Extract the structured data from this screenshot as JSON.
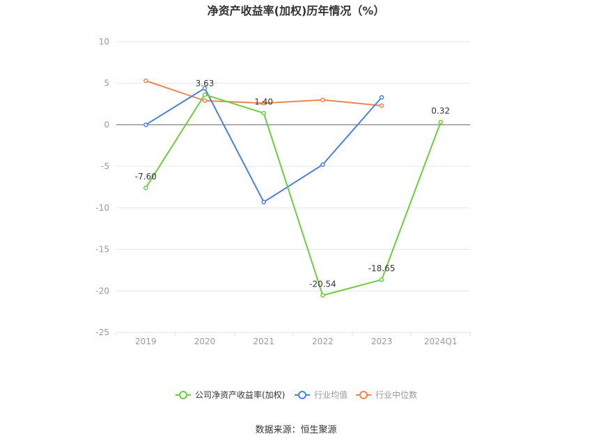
{
  "chart_data": {
    "type": "line",
    "title": "净资产收益率(加权)历年情况（%）",
    "categories": [
      "2019",
      "2020",
      "2021",
      "2022",
      "2023",
      "2024Q1"
    ],
    "y_ticks": [
      "10",
      "5",
      "0",
      "-5",
      "-10",
      "-15",
      "-20",
      "-25"
    ],
    "ylim": [
      -25,
      10
    ],
    "grid": true,
    "legend_position": "bottom",
    "series": [
      {
        "name": "公司净资产收益率(加权)",
        "color": "#6dcc3c",
        "values": [
          -7.6,
          3.63,
          1.4,
          -20.54,
          -18.65,
          0.32
        ],
        "labels": [
          "-7.60",
          "3.63",
          "1.40",
          "-20.54",
          "-18.65",
          "0.32"
        ]
      },
      {
        "name": "行业均值",
        "color": "#4a7fdc",
        "values": [
          0.0,
          4.4,
          -9.3,
          -4.8,
          3.3,
          null
        ]
      },
      {
        "name": "行业中位数",
        "color": "#f0844e",
        "values": [
          5.3,
          2.9,
          2.6,
          3.0,
          2.3,
          null
        ]
      }
    ]
  },
  "source": "数据来源：恒生聚源"
}
